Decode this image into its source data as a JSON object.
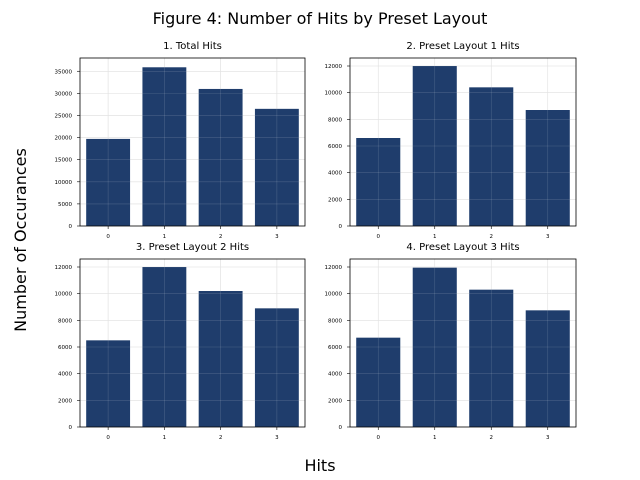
{
  "figure": {
    "title": "Figure 4: Number of Hits by Preset Layout",
    "xlabel": "Hits",
    "ylabel": "Number of Occurances"
  },
  "colors": {
    "bar": "#1f3d6c",
    "grid": "#d9d9d9",
    "axis": "#000000"
  },
  "chart_data": [
    {
      "type": "bar",
      "title": "1. Total Hits",
      "categories": [
        "0",
        "1",
        "2",
        "3"
      ],
      "values": [
        19700,
        35900,
        31000,
        26500
      ],
      "ylim": [
        0,
        38000
      ],
      "yticks": [
        0,
        5000,
        10000,
        15000,
        20000,
        25000,
        30000,
        35000
      ],
      "grid": true
    },
    {
      "type": "bar",
      "title": "2. Preset Layout 1 Hits",
      "categories": [
        "0",
        "1",
        "2",
        "3"
      ],
      "values": [
        6600,
        12000,
        10400,
        8700
      ],
      "ylim": [
        0,
        12600
      ],
      "yticks": [
        0,
        2000,
        4000,
        6000,
        8000,
        10000,
        12000
      ],
      "grid": true
    },
    {
      "type": "bar",
      "title": "3. Preset Layout 2 Hits",
      "categories": [
        "0",
        "1",
        "2",
        "3"
      ],
      "values": [
        6500,
        12000,
        10200,
        8900
      ],
      "ylim": [
        0,
        12600
      ],
      "yticks": [
        0,
        2000,
        4000,
        6000,
        8000,
        10000,
        12000
      ],
      "grid": true
    },
    {
      "type": "bar",
      "title": "4. Preset Layout 3 Hits",
      "categories": [
        "0",
        "1",
        "2",
        "3"
      ],
      "values": [
        6700,
        11950,
        10300,
        8750
      ],
      "ylim": [
        0,
        12600
      ],
      "yticks": [
        0,
        2000,
        4000,
        6000,
        8000,
        10000,
        12000
      ],
      "grid": true
    }
  ]
}
